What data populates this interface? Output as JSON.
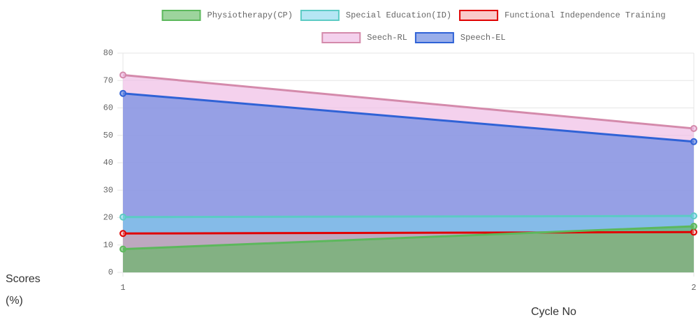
{
  "chart_data": {
    "type": "area",
    "x_label": "Cycle No",
    "y_label": "Scores (%)",
    "categories": [
      "1",
      "2"
    ],
    "series": [
      {
        "name": "Physiotherapy(CP)",
        "color": "#5cb85c",
        "fill": "rgba(92,184,92,0.6)",
        "values": [
          8.5,
          16.8
        ]
      },
      {
        "name": "Special Education(ID)",
        "color": "#5ccbc4",
        "fill": "rgba(120,210,235,0.55)",
        "values": [
          20.2,
          20.6
        ]
      },
      {
        "name": "Functional Independence Training",
        "color": "#e00000",
        "fill": "rgba(245,150,150,0.5)",
        "values": [
          14.2,
          14.7
        ]
      },
      {
        "name": "Seech-RL",
        "color": "#d48aab",
        "fill": "rgba(240,190,230,0.7)",
        "values": [
          72,
          52.5
        ]
      },
      {
        "name": "Speech-EL",
        "color": "#2f62d6",
        "fill": "rgba(110,140,225,0.7)",
        "values": [
          65.3,
          47.7
        ]
      }
    ],
    "ylim": [
      0,
      80
    ],
    "yticks": [
      0,
      10,
      20,
      30,
      40,
      50,
      60,
      70,
      80
    ],
    "grid": true
  }
}
